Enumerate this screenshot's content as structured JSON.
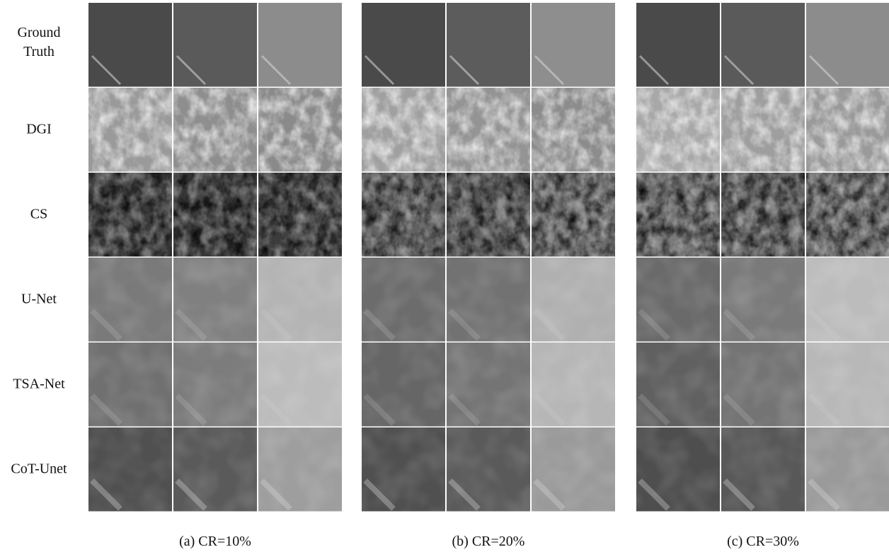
{
  "row_labels": [
    "Ground Truth",
    "DGI",
    "CS",
    "U-Net",
    "TSA-Net",
    "CoT-Unet"
  ],
  "captions": [
    "(a) CR=10%",
    "(b) CR=20%",
    "(c) CR=30%"
  ]
}
